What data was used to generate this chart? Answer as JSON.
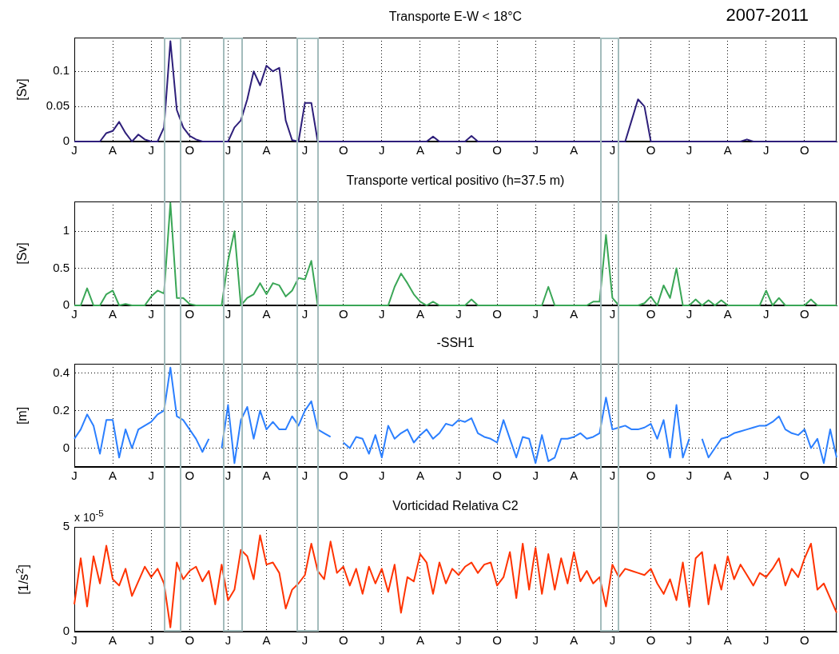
{
  "chart_data": [
    {
      "type": "line",
      "title": "Transporte E-W < 18°C",
      "ylabel": "[Sv]",
      "color": "#2e1f7a",
      "grid": true,
      "annotations": [
        "2007-2011"
      ],
      "categories": [
        "J",
        null,
        null,
        null,
        null,
        null,
        "A",
        null,
        null,
        null,
        null,
        null,
        "J",
        null,
        null,
        null,
        null,
        null,
        "O",
        null,
        null,
        null,
        null,
        null,
        "J",
        null,
        null,
        null,
        null,
        null,
        "A",
        null,
        null,
        null,
        null,
        null,
        "J",
        null,
        null,
        null,
        null,
        null,
        "O",
        null,
        null,
        null,
        null,
        null,
        "J",
        null,
        null,
        null,
        null,
        null,
        "A",
        null,
        null,
        null,
        null,
        null,
        "J",
        null,
        null,
        null,
        null,
        null,
        "O",
        null,
        null,
        null,
        null,
        null,
        "J",
        null,
        null,
        null,
        null,
        null,
        "A",
        null,
        null,
        null,
        null,
        null,
        "J",
        null,
        null,
        null,
        null,
        null,
        "O",
        null,
        null,
        null,
        null,
        null,
        "J",
        null,
        null,
        null,
        null,
        null,
        "A",
        null,
        null,
        null,
        null,
        null,
        "J",
        null,
        null,
        null,
        null,
        null,
        "O",
        null,
        null,
        null,
        null,
        null
      ],
      "ylim": [
        0,
        0.148
      ],
      "yticks": [
        0,
        0.05,
        0.1
      ],
      "values": [
        0,
        0,
        0,
        0,
        0,
        0.012,
        0.015,
        0.028,
        0.012,
        0,
        0.01,
        0.003,
        0,
        0,
        0.02,
        0.143,
        0.045,
        0.02,
        0.008,
        0.003,
        0,
        0,
        0,
        0,
        0,
        0.02,
        0.03,
        0.06,
        0.1,
        0.08,
        0.108,
        0.1,
        0.105,
        0.03,
        0.002,
        0,
        0.055,
        0.055,
        0,
        0,
        0,
        0,
        0,
        0,
        0,
        0,
        0,
        0,
        0,
        0,
        0,
        0,
        0,
        0,
        0,
        0,
        0.007,
        0,
        0,
        0,
        0,
        0,
        0.008,
        0,
        0,
        0,
        0,
        0,
        0,
        0,
        0,
        0,
        0,
        0,
        0,
        0,
        0,
        0,
        0,
        0,
        0,
        0,
        0,
        0,
        0,
        0,
        0,
        0.03,
        0.06,
        0.05,
        0,
        0,
        0,
        0,
        0,
        0,
        0,
        0,
        0,
        0,
        0,
        0,
        0,
        0,
        0,
        0.003,
        0,
        0,
        0,
        0,
        0,
        0,
        0,
        0,
        0,
        0,
        0,
        0,
        0,
        0
      ]
    },
    {
      "type": "line",
      "title": "Transporte vertical positivo (h=37.5 m)",
      "ylabel": "[Sv]",
      "color": "#3aa656",
      "grid": true,
      "categories": [
        "J",
        null,
        null,
        null,
        null,
        null,
        "A",
        null,
        null,
        null,
        null,
        null,
        "J",
        null,
        null,
        null,
        null,
        null,
        "O",
        null,
        null,
        null,
        null,
        null,
        "J",
        null,
        null,
        null,
        null,
        null,
        "A",
        null,
        null,
        null,
        null,
        null,
        "J",
        null,
        null,
        null,
        null,
        null,
        "O",
        null,
        null,
        null,
        null,
        null,
        "J",
        null,
        null,
        null,
        null,
        null,
        "A",
        null,
        null,
        null,
        null,
        null,
        "J",
        null,
        null,
        null,
        null,
        null,
        "O",
        null,
        null,
        null,
        null,
        null,
        "J",
        null,
        null,
        null,
        null,
        null,
        "A",
        null,
        null,
        null,
        null,
        null,
        "J",
        null,
        null,
        null,
        null,
        null,
        "O",
        null,
        null,
        null,
        null,
        null,
        "J",
        null,
        null,
        null,
        null,
        null,
        "A",
        null,
        null,
        null,
        null,
        null,
        "J",
        null,
        null,
        null,
        null,
        null,
        "O",
        null,
        null,
        null,
        null,
        null
      ],
      "ylim": [
        0,
        1.4
      ],
      "yticks": [
        0,
        0.5,
        1
      ],
      "values": [
        0,
        0,
        0.23,
        0,
        0,
        0.15,
        0.2,
        0,
        0.02,
        0,
        0,
        0,
        0.12,
        0.2,
        0.16,
        1.38,
        0.1,
        0.1,
        0.02,
        0,
        0,
        0,
        0,
        0,
        0.6,
        1.0,
        0,
        0.1,
        0.15,
        0.3,
        0.15,
        0.3,
        0.27,
        0.12,
        0.2,
        0.37,
        0.35,
        0.6,
        0,
        0,
        0,
        0,
        0,
        0,
        0,
        0,
        0,
        0,
        0,
        0,
        0.25,
        0.43,
        0.3,
        0.15,
        0.05,
        0,
        0.05,
        0,
        0,
        0,
        0,
        0,
        0.08,
        0,
        0,
        0,
        0,
        0,
        0,
        0,
        0,
        0,
        0,
        0,
        0.25,
        0,
        0,
        0,
        0,
        0,
        0,
        0.05,
        0.05,
        0.95,
        0.1,
        0,
        0,
        0,
        0,
        0.03,
        0.12,
        0,
        0.27,
        0.1,
        0.5,
        0,
        0,
        0.08,
        0,
        0.07,
        0,
        0.07,
        0,
        0,
        0,
        0,
        0,
        0,
        0.2,
        0,
        0.1,
        0,
        0,
        0,
        0,
        0.08,
        0,
        0,
        0,
        0
      ]
    },
    {
      "type": "line",
      "title": "-SSH1",
      "ylabel": "[m]",
      "color": "#2b7fff",
      "grid": true,
      "categories": [
        "J",
        null,
        null,
        null,
        null,
        null,
        "A",
        null,
        null,
        null,
        null,
        null,
        "J",
        null,
        null,
        null,
        null,
        null,
        "O",
        null,
        null,
        null,
        null,
        null,
        "J",
        null,
        null,
        null,
        null,
        null,
        "A",
        null,
        null,
        null,
        null,
        null,
        "J",
        null,
        null,
        null,
        null,
        null,
        "O",
        null,
        null,
        null,
        null,
        null,
        "J",
        null,
        null,
        null,
        null,
        null,
        "A",
        null,
        null,
        null,
        null,
        null,
        "J",
        null,
        null,
        null,
        null,
        null,
        "O",
        null,
        null,
        null,
        null,
        null,
        "J",
        null,
        null,
        null,
        null,
        null,
        "A",
        null,
        null,
        null,
        null,
        null,
        "J",
        null,
        null,
        null,
        null,
        null,
        "O",
        null,
        null,
        null,
        null,
        null,
        "J",
        null,
        null,
        null,
        null,
        null,
        "A",
        null,
        null,
        null,
        null,
        null,
        "J",
        null,
        null,
        null,
        null,
        null,
        "O",
        null,
        null,
        null,
        null,
        null
      ],
      "ylim": [
        -0.1,
        0.45
      ],
      "yticks": [
        0,
        0.2,
        0.4
      ],
      "values": [
        0.05,
        0.1,
        0.18,
        0.12,
        -0.03,
        0.15,
        0.15,
        -0.05,
        0.1,
        0,
        0.1,
        0.12,
        0.14,
        0.18,
        0.2,
        0.43,
        0.17,
        0.15,
        0.1,
        0.05,
        -0.02,
        0.05,
        null,
        0,
        0.23,
        -0.08,
        0.15,
        0.22,
        0.05,
        0.2,
        0.1,
        0.14,
        0.1,
        0.1,
        0.17,
        0.12,
        0.2,
        0.25,
        0.1,
        0.08,
        0.06,
        null,
        0.03,
        0,
        0.06,
        0.05,
        -0.03,
        0.07,
        -0.05,
        0.12,
        0.05,
        0.08,
        0.1,
        0.03,
        0.07,
        0.1,
        0.05,
        0.08,
        0.13,
        0.12,
        0.15,
        0.14,
        0.16,
        0.08,
        0.06,
        0.05,
        0.03,
        0.15,
        0.05,
        -0.05,
        0.06,
        0.05,
        -0.08,
        0.07,
        -0.07,
        -0.05,
        0.05,
        0.05,
        0.06,
        0.08,
        0.05,
        0.06,
        0.08,
        0.27,
        0.1,
        0.11,
        0.12,
        0.1,
        0.1,
        0.11,
        0.13,
        0.05,
        0.15,
        -0.05,
        0.23,
        -0.05,
        0.05,
        null,
        0.05,
        -0.05,
        0,
        0.05,
        0.06,
        0.08,
        0.09,
        0.1,
        0.11,
        0.12,
        0.12,
        0.14,
        0.17,
        0.1,
        0.08,
        0.07,
        0.1,
        0,
        0.05,
        -0.08,
        0.1,
        -0.05
      ]
    },
    {
      "type": "line",
      "title": "Vorticidad Relativa C2",
      "ylabel": "[1/s$^{2}$]",
      "color": "#ff3300",
      "grid": true,
      "annotations": [
        "x 10$^{-5}$"
      ],
      "categories": [
        "J",
        null,
        null,
        null,
        null,
        null,
        "A",
        null,
        null,
        null,
        null,
        null,
        "J",
        null,
        null,
        null,
        null,
        null,
        "O",
        null,
        null,
        null,
        null,
        null,
        "J",
        null,
        null,
        null,
        null,
        null,
        "A",
        null,
        null,
        null,
        null,
        null,
        "J",
        null,
        null,
        null,
        null,
        null,
        "O",
        null,
        null,
        null,
        null,
        null,
        "J",
        null,
        null,
        null,
        null,
        null,
        "A",
        null,
        null,
        null,
        null,
        null,
        "J",
        null,
        null,
        null,
        null,
        null,
        "O",
        null,
        null,
        null,
        null,
        null,
        "J",
        null,
        null,
        null,
        null,
        null,
        "A",
        null,
        null,
        null,
        null,
        null,
        "J",
        null,
        null,
        null,
        null,
        null,
        "O",
        null,
        null,
        null,
        null,
        null,
        "J",
        null,
        null,
        null,
        null,
        null,
        "A",
        null,
        null,
        null,
        null,
        null,
        "J",
        null,
        null,
        null,
        null,
        null,
        "O",
        null,
        null,
        null,
        null,
        null
      ],
      "ylim": [
        0,
        5
      ],
      "yticks": [
        0,
        5
      ],
      "values": [
        1.3,
        3.5,
        1.2,
        3.6,
        2.3,
        4.1,
        2.5,
        2.2,
        3.0,
        1.7,
        2.4,
        3.1,
        2.6,
        3.0,
        2.3,
        0.2,
        3.3,
        2.5,
        2.9,
        3.1,
        2.4,
        2.9,
        1.3,
        3.2,
        1.5,
        2.0,
        3.9,
        3.6,
        2.5,
        4.6,
        3.2,
        3.3,
        2.8,
        1.1,
        2.0,
        2.3,
        2.7,
        4.2,
        2.9,
        2.5,
        4.3,
        2.8,
        3.1,
        2.2,
        3.0,
        1.8,
        3.1,
        2.3,
        3.0,
        1.9,
        3.2,
        0.9,
        2.6,
        2.4,
        3.7,
        3.3,
        1.8,
        3.3,
        2.3,
        3.0,
        2.7,
        3.1,
        3.3,
        2.8,
        3.2,
        3.3,
        2.2,
        2.6,
        3.8,
        1.6,
        4.2,
        2.0,
        4.0,
        1.8,
        3.7,
        2.0,
        3.5,
        2.3,
        3.8,
        2.4,
        2.9,
        2.3,
        2.6,
        1.2,
        3.2,
        2.6,
        3.0,
        2.9,
        2.8,
        2.7,
        3.0,
        2.3,
        1.8,
        2.5,
        1.5,
        3.3,
        1.2,
        3.5,
        3.8,
        1.3,
        3.2,
        2.0,
        3.6,
        2.5,
        3.2,
        2.7,
        2.2,
        2.8,
        2.6,
        3.0,
        3.5,
        2.2,
        3.0,
        2.6,
        3.5,
        4.2,
        2.0,
        2.3,
        1.6,
        0.9
      ]
    }
  ]
}
